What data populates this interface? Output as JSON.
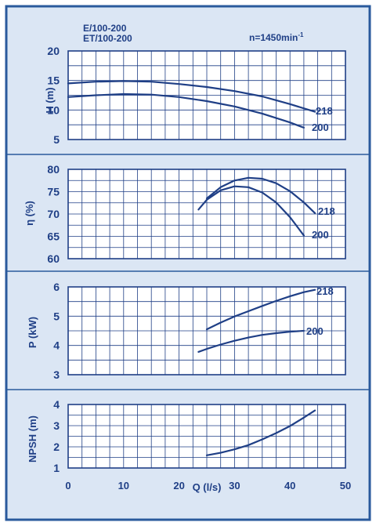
{
  "colors": {
    "border": "#2a5a9c",
    "panel_bg": "#dbe6f4",
    "plot_bg": "#ffffff",
    "grid": "#1f3f86",
    "curve": "#1f3f86",
    "text": "#1f3f86"
  },
  "header": {
    "model_line1": "E/100-200",
    "model_line2": "ET/100-200",
    "speed_prefix": "n=1450min",
    "speed_exp": "-1"
  },
  "x_axis": {
    "label": "Q (l/s)",
    "range": [
      0,
      50
    ],
    "ticks": [
      0,
      10,
      20,
      30,
      40,
      50
    ]
  },
  "chart_data": [
    {
      "type": "line",
      "ylabel": "H (m)",
      "ylim": [
        5,
        20
      ],
      "yticks": [
        5,
        10,
        15,
        20
      ],
      "grid": true,
      "series": [
        {
          "name": "218",
          "x": [
            0,
            5,
            10,
            15,
            20,
            25,
            30,
            35,
            40,
            44.5
          ],
          "values": [
            14.5,
            14.8,
            14.9,
            14.8,
            14.4,
            13.9,
            13.2,
            12.3,
            11.0,
            9.7
          ]
        },
        {
          "name": "200",
          "x": [
            0,
            5,
            10,
            15,
            20,
            25,
            30,
            35,
            40,
            42.5
          ],
          "values": [
            12.2,
            12.5,
            12.7,
            12.6,
            12.2,
            11.5,
            10.6,
            9.4,
            7.9,
            7.0
          ]
        }
      ]
    },
    {
      "type": "line",
      "ylabel": "η (%)",
      "ylim": [
        60,
        80
      ],
      "yticks": [
        60,
        65,
        70,
        75,
        80
      ],
      "grid": true,
      "series": [
        {
          "name": "218",
          "x": [
            25,
            27.5,
            30,
            32.5,
            35,
            37.5,
            40,
            42.5,
            44.5
          ],
          "values": [
            73.5,
            76.0,
            77.5,
            78.1,
            77.9,
            76.9,
            75.1,
            72.6,
            70.2
          ]
        },
        {
          "name": "200",
          "x": [
            23.5,
            25,
            27.5,
            30,
            32.5,
            35,
            37.5,
            40,
            42.5
          ],
          "values": [
            71.0,
            73.2,
            75.3,
            76.2,
            76.0,
            74.8,
            72.6,
            69.3,
            65.2
          ]
        }
      ]
    },
    {
      "type": "line",
      "ylabel": "P (kW)",
      "ylim": [
        3,
        6
      ],
      "yticks": [
        3,
        4,
        5,
        6
      ],
      "grid": true,
      "series": [
        {
          "name": "218",
          "x": [
            25,
            27.5,
            30,
            32.5,
            35,
            37.5,
            40,
            42.5,
            44.5
          ],
          "values": [
            4.55,
            4.78,
            4.99,
            5.17,
            5.35,
            5.52,
            5.68,
            5.82,
            5.9
          ]
        },
        {
          "name": "200",
          "x": [
            23.5,
            25,
            27.5,
            30,
            32.5,
            35,
            37.5,
            40,
            42.5
          ],
          "values": [
            3.78,
            3.88,
            4.03,
            4.16,
            4.27,
            4.36,
            4.42,
            4.47,
            4.5
          ]
        }
      ]
    },
    {
      "type": "line",
      "ylabel": "NPSH (m)",
      "ylim": [
        1,
        4
      ],
      "yticks": [
        1,
        2,
        3,
        4
      ],
      "grid": true,
      "series": [
        {
          "name": "",
          "x": [
            25,
            27.5,
            30,
            32.5,
            35,
            37.5,
            40,
            42.5,
            44.5
          ],
          "values": [
            1.6,
            1.72,
            1.88,
            2.08,
            2.35,
            2.65,
            2.98,
            3.38,
            3.72
          ]
        }
      ]
    }
  ]
}
